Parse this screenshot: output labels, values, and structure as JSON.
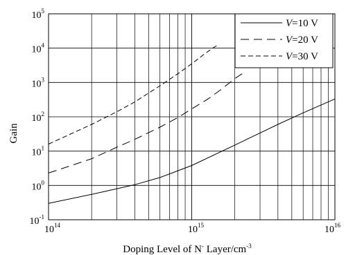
{
  "chart_data": {
    "type": "line",
    "xlabel": {
      "main": "Doping Level of N",
      "sup1": "-",
      "mid": " Layer/cm",
      "sup2": "-3"
    },
    "ylabel": "Gain",
    "x_scale": "log",
    "y_scale": "log",
    "xlim": [
      100000000000000.0,
      1e+16
    ],
    "ylim": [
      0.1,
      100000
    ],
    "grid": true,
    "legend_position": "top-right",
    "x_ticks": [
      {
        "base": "10",
        "exp": "14",
        "value": 100000000000000.0
      },
      {
        "base": "10",
        "exp": "15",
        "value": 1000000000000000.0
      },
      {
        "base": "10",
        "exp": "16",
        "value": 1e+16
      }
    ],
    "y_ticks": [
      {
        "base": "10",
        "exp": "-1",
        "value": 0.1
      },
      {
        "base": "10",
        "exp": "0",
        "value": 1
      },
      {
        "base": "10",
        "exp": "1",
        "value": 10
      },
      {
        "base": "10",
        "exp": "2",
        "value": 100
      },
      {
        "base": "10",
        "exp": "3",
        "value": 1000
      },
      {
        "base": "10",
        "exp": "4",
        "value": 10000
      },
      {
        "base": "10",
        "exp": "5",
        "value": 100000
      }
    ],
    "series": [
      {
        "name": "V=10 V",
        "label_italic": "V",
        "label_rest": "=10 V",
        "dash": "solid",
        "x": [
          100000000000000.0,
          200000000000000.0,
          300000000000000.0,
          400000000000000.0,
          600000000000000.0,
          1000000000000000.0,
          2000000000000000.0,
          4000000000000000.0,
          6000000000000000.0,
          1e+16
        ],
        "y": [
          0.3,
          0.55,
          0.8,
          1.05,
          1.7,
          3.8,
          15,
          60,
          130,
          330
        ]
      },
      {
        "name": "V=20 V",
        "label_italic": "V",
        "label_rest": "=20 V",
        "dash": "long",
        "x": [
          100000000000000.0,
          200000000000000.0,
          300000000000000.0,
          400000000000000.0,
          600000000000000.0,
          800000000000000.0,
          1000000000000000.0,
          1300000000000000.0,
          1600000000000000.0,
          2000000000000000.0,
          2250000000000000.0
        ],
        "y": [
          2.3,
          6,
          13,
          22,
          50,
          95,
          170,
          330,
          620,
          1300,
          1800
        ]
      },
      {
        "name": "V=30 V",
        "label_italic": "V",
        "label_rest": "=30 V",
        "dash": "short",
        "x": [
          100000000000000.0,
          200000000000000.0,
          300000000000000.0,
          400000000000000.0,
          600000000000000.0,
          800000000000000.0,
          1000000000000000.0,
          1200000000000000.0,
          1400000000000000.0,
          1550000000000000.0
        ],
        "y": [
          16,
          60,
          140,
          270,
          800,
          1800,
          3500,
          6300,
          10000,
          13000
        ]
      }
    ]
  }
}
